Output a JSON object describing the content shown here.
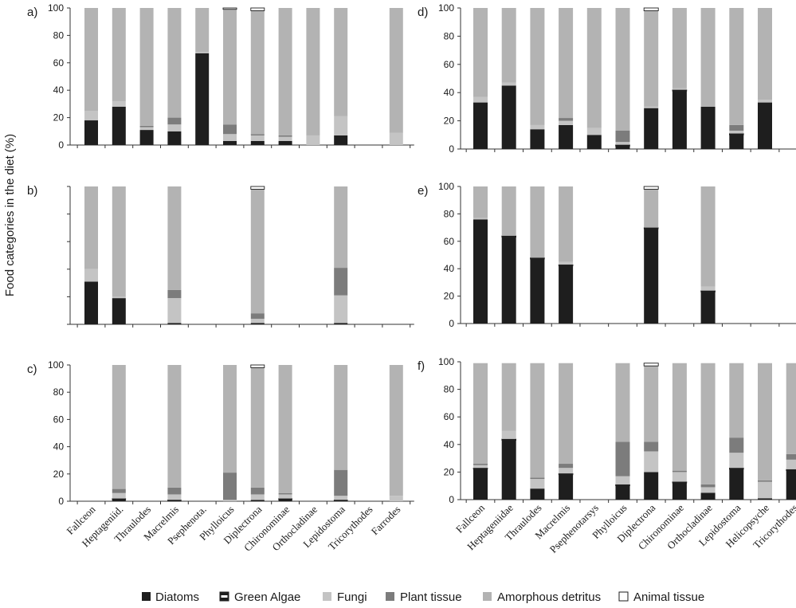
{
  "figure": {
    "ylabel": "Food categories in the diet (%)",
    "colors": {
      "Diatoms": "#1e1e1e",
      "Green Algae": "#1e1e1e",
      "Fungi": "#c4c4c4",
      "Plant tissue": "#7c7c7c",
      "Amorphous detritus": "#b3b3b3",
      "Animal tissue": "#ffffff"
    },
    "legend": [
      {
        "name": "Diatoms",
        "style": "solid-dark"
      },
      {
        "name": "Green Algae",
        "style": "band"
      },
      {
        "name": "Fungi",
        "style": "light"
      },
      {
        "name": "Plant tissue",
        "style": "mid"
      },
      {
        "name": "Amorphous detritus",
        "style": "light2"
      },
      {
        "name": "Animal tissue",
        "style": "white"
      }
    ]
  },
  "chart_data": [
    {
      "panel": "a)",
      "type": "stacked-bar",
      "yticks": [
        "0",
        "20",
        "40",
        "60",
        "80",
        "100"
      ],
      "ylim": [
        0,
        100
      ],
      "show_ticks": true,
      "categories": [
        "Fallceon",
        "Heptageniidae",
        "Thraulodes",
        "Macrelmis",
        "Psephenotarsys",
        "Phylloicus",
        "Diplectrona",
        "Chironominae",
        "Orthocladiinae",
        "Lepidostoma",
        "Tricorythodes",
        "Farrodes"
      ],
      "series": [
        {
          "name": "Diatoms",
          "values": [
            18,
            28,
            11,
            10,
            67,
            3,
            3,
            3,
            0,
            7,
            0,
            0
          ]
        },
        {
          "name": "Green Algae",
          "values": [
            0,
            0,
            0,
            0,
            0,
            0,
            0,
            0,
            0,
            0,
            0,
            0
          ]
        },
        {
          "name": "Fungi",
          "values": [
            7,
            4,
            2,
            5,
            1,
            5,
            4,
            3,
            7,
            14,
            null,
            9
          ]
        },
        {
          "name": "Plant tissue",
          "values": [
            0,
            0,
            1,
            5,
            0,
            7,
            1,
            1,
            0,
            0,
            null,
            0
          ]
        },
        {
          "name": "Amorphous detritus",
          "values": [
            75,
            68,
            86,
            80,
            32,
            84,
            90,
            93,
            93,
            79,
            null,
            91
          ]
        },
        {
          "name": "Animal tissue",
          "values": [
            0,
            0,
            0,
            0,
            0,
            1,
            2,
            0,
            0,
            0,
            null,
            0
          ]
        }
      ]
    },
    {
      "panel": "b)",
      "type": "stacked-bar",
      "yticks": [
        "",
        "",
        "",
        "",
        "",
        ""
      ],
      "ylim": [
        0,
        100
      ],
      "show_ticks": false,
      "categories": [
        "Fallceon",
        "Heptageniidae",
        "Thraulodes",
        "Macrelmis",
        "Psephenotarsys",
        "Phylloicus",
        "Diplectrona",
        "Chironominae",
        "Orthocladiinae",
        "Lepidostoma",
        "Tricorythodes",
        "Farrodes"
      ],
      "series": [
        {
          "name": "Diatoms",
          "values": [
            31,
            19,
            null,
            1,
            null,
            null,
            1,
            null,
            null,
            1,
            null,
            null
          ]
        },
        {
          "name": "Green Algae",
          "values": [
            0,
            0,
            null,
            0,
            null,
            null,
            0,
            null,
            null,
            0,
            null,
            null
          ]
        },
        {
          "name": "Fungi",
          "values": [
            9,
            1,
            null,
            18,
            null,
            null,
            3,
            null,
            null,
            20,
            null,
            null
          ]
        },
        {
          "name": "Plant tissue",
          "values": [
            0,
            0,
            null,
            6,
            null,
            null,
            4,
            null,
            null,
            20,
            null,
            null
          ]
        },
        {
          "name": "Amorphous detritus",
          "values": [
            60,
            80,
            null,
            75,
            null,
            null,
            90,
            null,
            null,
            59,
            null,
            null
          ]
        },
        {
          "name": "Animal tissue",
          "values": [
            0,
            0,
            null,
            0,
            null,
            null,
            2,
            null,
            null,
            0,
            null,
            null
          ]
        }
      ]
    },
    {
      "panel": "c)",
      "type": "stacked-bar",
      "yticks": [
        "0",
        "20",
        "40",
        "60",
        "80",
        "100"
      ],
      "ylim": [
        0,
        100
      ],
      "show_ticks": true,
      "categories": [
        "Fallceon",
        "Heptageniidae",
        "Thraulodes",
        "Macrelmis",
        "Psephenotarsys",
        "Phylloicus",
        "Diplectrona",
        "Chironominae",
        "Orthocladiinae",
        "Lepidostoma",
        "Tricorythodes",
        "Farrodes"
      ],
      "series": [
        {
          "name": "Diatoms",
          "values": [
            null,
            1,
            null,
            0,
            null,
            0,
            1,
            1,
            null,
            0,
            null,
            0
          ]
        },
        {
          "name": "Green Algae",
          "values": [
            null,
            1,
            null,
            1,
            null,
            0,
            0,
            1,
            null,
            1,
            null,
            0
          ]
        },
        {
          "name": "Fungi",
          "values": [
            null,
            4,
            null,
            4,
            null,
            1,
            4,
            3,
            null,
            3,
            null,
            4
          ]
        },
        {
          "name": "Plant tissue",
          "values": [
            null,
            3,
            null,
            5,
            null,
            20,
            5,
            1,
            null,
            19,
            null,
            0
          ]
        },
        {
          "name": "Amorphous detritus",
          "values": [
            null,
            91,
            null,
            90,
            null,
            79,
            88,
            94,
            null,
            77,
            null,
            96
          ]
        },
        {
          "name": "Animal tissue",
          "values": [
            null,
            0,
            null,
            0,
            null,
            0,
            2,
            0,
            null,
            0,
            null,
            0
          ]
        }
      ]
    },
    {
      "panel": "d)",
      "type": "stacked-bar",
      "yticks": [
        "0",
        "20",
        "40",
        "60",
        "80",
        "100"
      ],
      "ylim": [
        0,
        100
      ],
      "show_ticks": true,
      "categories": [
        "Fallceon",
        "Heptageniidae",
        "Thraulodes",
        "Macrelmis",
        "Psephenotarsys",
        "Phylloicus",
        "Diplectrona",
        "Chironominae",
        "Orthocladiinae",
        "Lepidostoma",
        "Helicopsyche",
        "Tricorythodes"
      ],
      "series": [
        {
          "name": "Diatoms",
          "values": [
            33,
            45,
            14,
            17,
            10,
            2,
            29,
            41,
            30,
            10,
            33,
            null
          ]
        },
        {
          "name": "Green Algae",
          "values": [
            0,
            0,
            0,
            0,
            0,
            1,
            0,
            1,
            0,
            1,
            0,
            null
          ]
        },
        {
          "name": "Fungi",
          "values": [
            4,
            2,
            3,
            3,
            5,
            2,
            1,
            1,
            0,
            2,
            2,
            null
          ]
        },
        {
          "name": "Plant tissue",
          "values": [
            0,
            0,
            0,
            2,
            0,
            8,
            0,
            0,
            0,
            4,
            0,
            null
          ]
        },
        {
          "name": "Amorphous detritus",
          "values": [
            63,
            53,
            83,
            78,
            85,
            87,
            68,
            57,
            70,
            83,
            65,
            null
          ]
        },
        {
          "name": "Animal tissue",
          "values": [
            0,
            0,
            0,
            0,
            0,
            0,
            2,
            0,
            0,
            0,
            0,
            null
          ]
        }
      ]
    },
    {
      "panel": "e)",
      "type": "stacked-bar",
      "yticks": [
        "0",
        "20",
        "40",
        "60",
        "80",
        "100"
      ],
      "ylim": [
        0,
        100
      ],
      "show_ticks": true,
      "categories": [
        "Fallceon",
        "Heptageniidae",
        "Thraulodes",
        "Macrelmis",
        "Psephenotarsys",
        "Phylloicus",
        "Diplectrona",
        "Chironominae",
        "Orthocladiinae",
        "Lepidostoma",
        "Helicopsyche",
        "Tricorythodes"
      ],
      "series": [
        {
          "name": "Diatoms",
          "values": [
            76,
            63,
            47,
            42,
            null,
            null,
            69,
            null,
            23,
            null,
            null,
            null
          ]
        },
        {
          "name": "Green Algae",
          "values": [
            0,
            1,
            1,
            1,
            null,
            null,
            1,
            null,
            1,
            null,
            null,
            null
          ]
        },
        {
          "name": "Fungi",
          "values": [
            1,
            0,
            0,
            2,
            null,
            null,
            0,
            null,
            3,
            null,
            null,
            null
          ]
        },
        {
          "name": "Plant tissue",
          "values": [
            0,
            0,
            0,
            0,
            null,
            null,
            0,
            null,
            0,
            null,
            null,
            null
          ]
        },
        {
          "name": "Amorphous detritus",
          "values": [
            23,
            36,
            52,
            55,
            null,
            null,
            28,
            null,
            73,
            null,
            null,
            null
          ]
        },
        {
          "name": "Animal tissue",
          "values": [
            0,
            0,
            0,
            0,
            null,
            null,
            2,
            null,
            0,
            null,
            null,
            null
          ]
        }
      ]
    },
    {
      "panel": "f)",
      "type": "stacked-bar",
      "yticks": [
        "0",
        "20",
        "40",
        "60",
        "80",
        "100"
      ],
      "ylim": [
        0,
        100
      ],
      "show_ticks": true,
      "categories": [
        "Fallceon",
        "Heptageniidae",
        "Thraulodes",
        "Macrelmis",
        "Psephenotarsys",
        "Phylloicus",
        "Diplectrona",
        "Chironominae",
        "Orthocladiinae",
        "Lepidostoma",
        "Helicopsyche",
        "Tricorythodes"
      ],
      "series": [
        {
          "name": "Diatoms",
          "values": [
            22,
            43,
            8,
            18,
            null,
            10,
            20,
            12,
            5,
            22,
            1,
            21
          ]
        },
        {
          "name": "Green Algae",
          "values": [
            1,
            1,
            0,
            1,
            null,
            1,
            0,
            1,
            0,
            1,
            0,
            1
          ]
        },
        {
          "name": "Fungi",
          "values": [
            2,
            6,
            7,
            4,
            null,
            6,
            15,
            7,
            4,
            11,
            12,
            7
          ]
        },
        {
          "name": "Plant tissue",
          "values": [
            1,
            0,
            1,
            3,
            null,
            25,
            7,
            1,
            2,
            11,
            1,
            4
          ]
        },
        {
          "name": "Amorphous detritus",
          "values": [
            73,
            49,
            83,
            73,
            null,
            57,
            55,
            78,
            88,
            54,
            85,
            66
          ]
        },
        {
          "name": "Animal tissue",
          "values": [
            0,
            0,
            0,
            0,
            null,
            0,
            2,
            0,
            0,
            0,
            0,
            0
          ]
        }
      ]
    }
  ],
  "category_labels": {
    "left": [
      "Fallceon",
      "Heptageniid.",
      "Thraulodes",
      "Macrelmis",
      "Psephenota.",
      "Phylloicus",
      "Diplectrona",
      "Chironominae",
      "Orthocladinae",
      "Lepidostoma",
      "Tricorythodes",
      "Farrodes"
    ],
    "right": [
      "Fallceon",
      "Heptageniidae",
      "Thraulodes",
      "Macrelmis",
      "Psephenotarsys",
      "Phylloicus",
      "Diplectrona",
      "Chironominae",
      "Orthocladinae",
      "Lepidostoma",
      "Helicopsyche",
      "Tricorythodes"
    ]
  }
}
